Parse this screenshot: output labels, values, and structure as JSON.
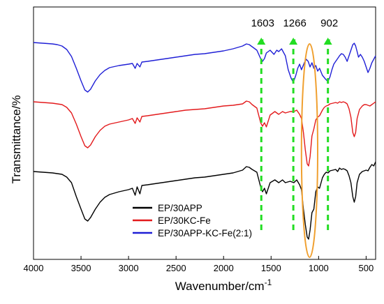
{
  "chart_data": {
    "type": "line",
    "xlabel": "Wavenumber/cm",
    "xlabel_superscript": "-1",
    "ylabel": "Transmittance/%",
    "xlim": [
      4000,
      400
    ],
    "x_reversed": true,
    "x_ticks": [
      "4000",
      "3500",
      "3000",
      "2500",
      "2000",
      "1500",
      "1000",
      "500"
    ],
    "y_ticks_shown": false,
    "y_units": "relative transmittance (arbitrary, stacked)",
    "legend_position": "bottom-center",
    "annotations": [
      {
        "label": "1603",
        "x": 1603,
        "style": "dashed green arrow"
      },
      {
        "label": "1266",
        "x": 1266,
        "style": "dashed green arrow"
      },
      {
        "label": "902",
        "x": 902,
        "style": "dashed green arrow"
      }
    ],
    "highlight_ellipse": {
      "x_center": 1090,
      "x_range": [
        1010,
        1180
      ],
      "color": "#f0a030"
    },
    "series": [
      {
        "name": "EP/30APP",
        "color": "#000000",
        "points": [
          [
            4000,
            246
          ],
          [
            3900,
            247
          ],
          [
            3800,
            248
          ],
          [
            3700,
            250
          ],
          [
            3650,
            254
          ],
          [
            3600,
            262
          ],
          [
            3550,
            282
          ],
          [
            3500,
            300
          ],
          [
            3460,
            314
          ],
          [
            3430,
            317
          ],
          [
            3400,
            312
          ],
          [
            3350,
            300
          ],
          [
            3300,
            290
          ],
          [
            3250,
            283
          ],
          [
            3200,
            279
          ],
          [
            3100,
            275
          ],
          [
            3000,
            272
          ],
          [
            2960,
            270
          ],
          [
            2930,
            280
          ],
          [
            2910,
            268
          ],
          [
            2880,
            278
          ],
          [
            2860,
            266
          ],
          [
            2800,
            265
          ],
          [
            2700,
            263
          ],
          [
            2600,
            261
          ],
          [
            2500,
            259
          ],
          [
            2400,
            257
          ],
          [
            2300,
            255
          ],
          [
            2200,
            254
          ],
          [
            2100,
            252
          ],
          [
            2000,
            250
          ],
          [
            1900,
            248
          ],
          [
            1800,
            244
          ],
          [
            1760,
            239
          ],
          [
            1730,
            240
          ],
          [
            1700,
            243
          ],
          [
            1650,
            247
          ],
          [
            1610,
            268
          ],
          [
            1590,
            275
          ],
          [
            1570,
            270
          ],
          [
            1550,
            278
          ],
          [
            1510,
            262
          ],
          [
            1460,
            258
          ],
          [
            1420,
            262
          ],
          [
            1380,
            258
          ],
          [
            1350,
            262
          ],
          [
            1300,
            260
          ],
          [
            1260,
            262
          ],
          [
            1230,
            258
          ],
          [
            1200,
            265
          ],
          [
            1180,
            272
          ],
          [
            1160,
            300
          ],
          [
            1140,
            322
          ],
          [
            1120,
            340
          ],
          [
            1105,
            343
          ],
          [
            1090,
            330
          ],
          [
            1070,
            305
          ],
          [
            1050,
            300
          ],
          [
            1030,
            275
          ],
          [
            1010,
            268
          ],
          [
            990,
            270
          ],
          [
            960,
            255
          ],
          [
            940,
            250
          ],
          [
            920,
            247
          ],
          [
            900,
            248
          ],
          [
            880,
            245
          ],
          [
            850,
            244
          ],
          [
            820,
            243
          ],
          [
            800,
            246
          ],
          [
            780,
            241
          ],
          [
            760,
            243
          ],
          [
            740,
            242
          ],
          [
            720,
            243
          ],
          [
            700,
            245
          ],
          [
            680,
            252
          ],
          [
            660,
            262
          ],
          [
            640,
            282
          ],
          [
            625,
            290
          ],
          [
            610,
            282
          ],
          [
            595,
            262
          ],
          [
            570,
            250
          ],
          [
            540,
            246
          ],
          [
            520,
            245
          ],
          [
            500,
            244
          ],
          [
            480,
            245
          ],
          [
            460,
            240
          ],
          [
            440,
            236
          ],
          [
            420,
            238
          ],
          [
            400,
            232
          ]
        ]
      },
      {
        "name": "EP/30KC-Fe",
        "color": "#e31a1c",
        "points": [
          [
            4000,
            146
          ],
          [
            3900,
            147
          ],
          [
            3800,
            148
          ],
          [
            3700,
            150
          ],
          [
            3650,
            154
          ],
          [
            3600,
            162
          ],
          [
            3550,
            178
          ],
          [
            3500,
            196
          ],
          [
            3460,
            209
          ],
          [
            3430,
            212
          ],
          [
            3400,
            208
          ],
          [
            3350,
            196
          ],
          [
            3300,
            187
          ],
          [
            3250,
            181
          ],
          [
            3200,
            178
          ],
          [
            3100,
            175
          ],
          [
            3000,
            172
          ],
          [
            2960,
            170
          ],
          [
            2930,
            177
          ],
          [
            2910,
            169
          ],
          [
            2880,
            175
          ],
          [
            2860,
            167
          ],
          [
            2800,
            166
          ],
          [
            2700,
            164
          ],
          [
            2600,
            162
          ],
          [
            2500,
            160
          ],
          [
            2400,
            158
          ],
          [
            2300,
            157
          ],
          [
            2200,
            156
          ],
          [
            2100,
            154
          ],
          [
            2000,
            152
          ],
          [
            1900,
            151
          ],
          [
            1800,
            149
          ],
          [
            1760,
            145
          ],
          [
            1730,
            146
          ],
          [
            1700,
            150
          ],
          [
            1650,
            155
          ],
          [
            1610,
            176
          ],
          [
            1590,
            181
          ],
          [
            1570,
            176
          ],
          [
            1550,
            182
          ],
          [
            1510,
            165
          ],
          [
            1460,
            160
          ],
          [
            1420,
            164
          ],
          [
            1380,
            160
          ],
          [
            1350,
            162
          ],
          [
            1300,
            160
          ],
          [
            1260,
            160
          ],
          [
            1230,
            158
          ],
          [
            1200,
            164
          ],
          [
            1180,
            170
          ],
          [
            1160,
            190
          ],
          [
            1140,
            215
          ],
          [
            1120,
            235
          ],
          [
            1105,
            238
          ],
          [
            1090,
            225
          ],
          [
            1070,
            195
          ],
          [
            1050,
            185
          ],
          [
            1030,
            172
          ],
          [
            1010,
            168
          ],
          [
            990,
            166
          ],
          [
            960,
            158
          ],
          [
            940,
            154
          ],
          [
            920,
            152
          ],
          [
            900,
            151
          ],
          [
            880,
            149
          ],
          [
            850,
            148
          ],
          [
            820,
            147
          ],
          [
            800,
            148
          ],
          [
            780,
            146
          ],
          [
            760,
            147
          ],
          [
            740,
            146
          ],
          [
            720,
            147
          ],
          [
            700,
            149
          ],
          [
            680,
            156
          ],
          [
            660,
            168
          ],
          [
            640,
            190
          ],
          [
            625,
            196
          ],
          [
            610,
            190
          ],
          [
            595,
            170
          ],
          [
            570,
            157
          ],
          [
            540,
            152
          ],
          [
            520,
            150
          ],
          [
            500,
            150
          ],
          [
            480,
            151
          ],
          [
            460,
            152
          ],
          [
            440,
            150
          ],
          [
            420,
            148
          ],
          [
            400,
            146
          ]
        ]
      },
      {
        "name": "EP/30APP-KC-Fe(2:1)",
        "color": "#1f1fd6",
        "points": [
          [
            4000,
            61
          ],
          [
            3900,
            62
          ],
          [
            3800,
            63
          ],
          [
            3750,
            64
          ],
          [
            3700,
            66
          ],
          [
            3650,
            71
          ],
          [
            3600,
            81
          ],
          [
            3550,
            98
          ],
          [
            3500,
            116
          ],
          [
            3460,
            129
          ],
          [
            3430,
            132
          ],
          [
            3400,
            128
          ],
          [
            3350,
            116
          ],
          [
            3300,
            107
          ],
          [
            3250,
            101
          ],
          [
            3200,
            97
          ],
          [
            3100,
            94
          ],
          [
            3000,
            92
          ],
          [
            2960,
            91
          ],
          [
            2930,
            98
          ],
          [
            2910,
            91
          ],
          [
            2880,
            96
          ],
          [
            2860,
            89
          ],
          [
            2800,
            88
          ],
          [
            2700,
            86
          ],
          [
            2600,
            84
          ],
          [
            2500,
            82
          ],
          [
            2400,
            80
          ],
          [
            2300,
            78
          ],
          [
            2200,
            77
          ],
          [
            2100,
            75
          ],
          [
            2000,
            73
          ],
          [
            1900,
            70
          ],
          [
            1800,
            66
          ],
          [
            1760,
            63
          ],
          [
            1730,
            64
          ],
          [
            1700,
            67
          ],
          [
            1650,
            72
          ],
          [
            1610,
            84
          ],
          [
            1590,
            88
          ],
          [
            1570,
            84
          ],
          [
            1550,
            76
          ],
          [
            1510,
            72
          ],
          [
            1470,
            78
          ],
          [
            1440,
            72
          ],
          [
            1420,
            74
          ],
          [
            1390,
            70
          ],
          [
            1350,
            80
          ],
          [
            1320,
            100
          ],
          [
            1290,
            112
          ],
          [
            1266,
            118
          ],
          [
            1240,
            108
          ],
          [
            1220,
            98
          ],
          [
            1200,
            92
          ],
          [
            1180,
            100
          ],
          [
            1150,
            90
          ],
          [
            1130,
            85
          ],
          [
            1110,
            88
          ],
          [
            1090,
            96
          ],
          [
            1070,
            90
          ],
          [
            1050,
            98
          ],
          [
            1030,
            94
          ],
          [
            1010,
            102
          ],
          [
            990,
            98
          ],
          [
            960,
            108
          ],
          [
            930,
            113
          ],
          [
            902,
            117
          ],
          [
            880,
            110
          ],
          [
            860,
            100
          ],
          [
            840,
            92
          ],
          [
            820,
            88
          ],
          [
            800,
            84
          ],
          [
            780,
            80
          ],
          [
            760,
            77
          ],
          [
            740,
            78
          ],
          [
            720,
            82
          ],
          [
            700,
            88
          ],
          [
            680,
            80
          ],
          [
            660,
            72
          ],
          [
            640,
            64
          ],
          [
            625,
            62
          ],
          [
            610,
            66
          ],
          [
            595,
            74
          ],
          [
            580,
            82
          ],
          [
            560,
            78
          ],
          [
            540,
            82
          ],
          [
            520,
            88
          ],
          [
            500,
            96
          ],
          [
            480,
            104
          ],
          [
            460,
            98
          ],
          [
            440,
            90
          ],
          [
            420,
            85
          ],
          [
            400,
            80
          ]
        ]
      }
    ]
  }
}
